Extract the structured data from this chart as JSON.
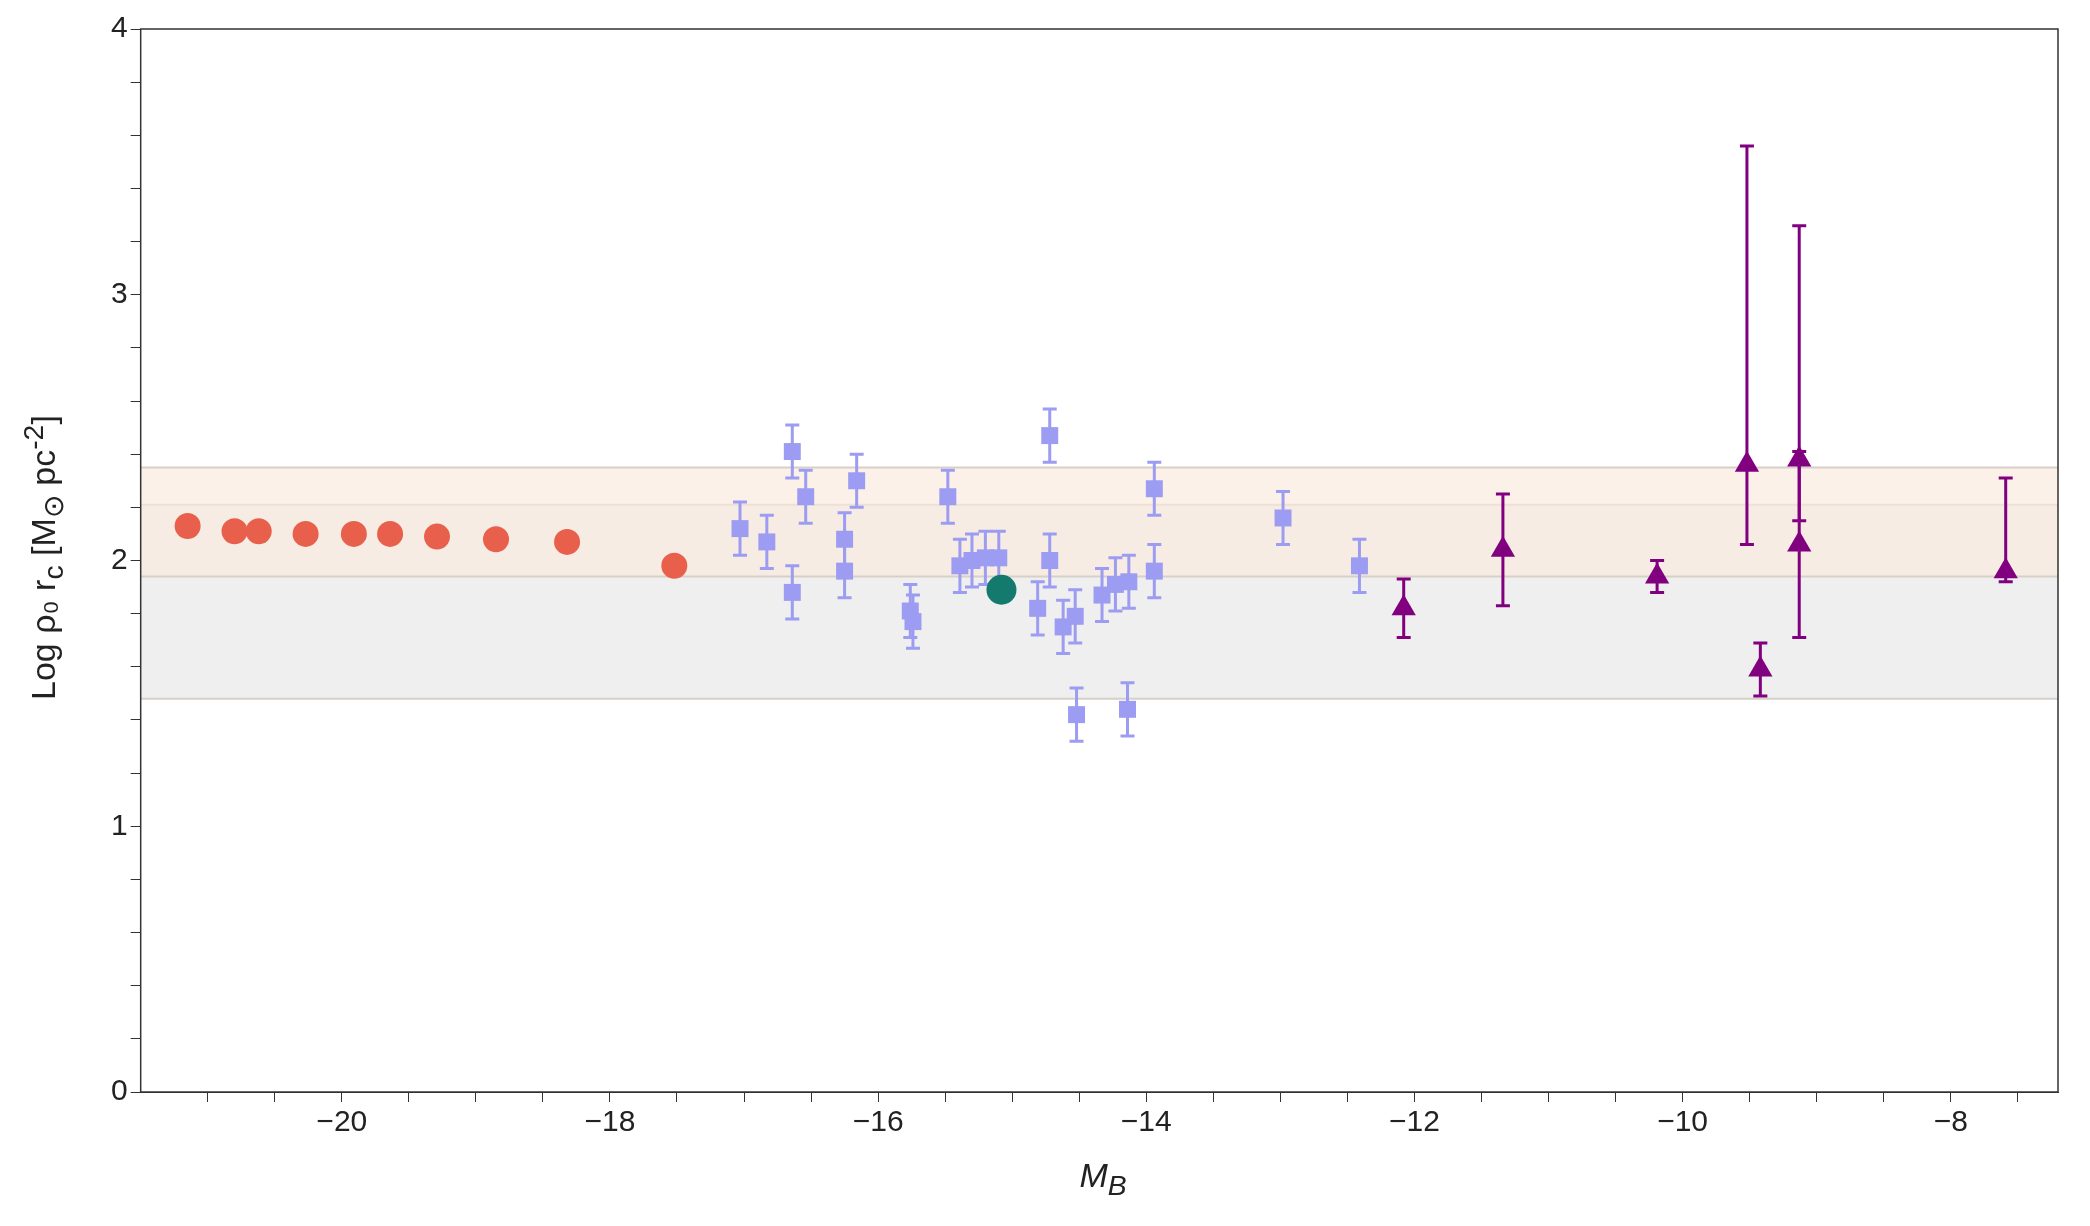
{
  "chart_data": {
    "type": "scatter",
    "xlabel": "M$_{B}$",
    "ylabel": "Log ρ₀ r$_{c}$ [M$_{⊙}$ pc$^{-2}$]",
    "xlim": [
      -21.5,
      -7.2
    ],
    "ylim": [
      0,
      4
    ],
    "xticks": [
      {
        "value": -21,
        "label": null
      },
      {
        "value": -20.5,
        "label": null
      },
      {
        "value": -20,
        "label": "−20"
      },
      {
        "value": -19.5,
        "label": null
      },
      {
        "value": -19,
        "label": null
      },
      {
        "value": -18.5,
        "label": null
      },
      {
        "value": -18,
        "label": "−18"
      },
      {
        "value": -17.5,
        "label": null
      },
      {
        "value": -17,
        "label": null
      },
      {
        "value": -16.5,
        "label": null
      },
      {
        "value": -16,
        "label": "−16"
      },
      {
        "value": -15.5,
        "label": null
      },
      {
        "value": -15,
        "label": null
      },
      {
        "value": -14.5,
        "label": null
      },
      {
        "value": -14,
        "label": "−14"
      },
      {
        "value": -13.5,
        "label": null
      },
      {
        "value": -13,
        "label": null
      },
      {
        "value": -12.5,
        "label": null
      },
      {
        "value": -12,
        "label": "−12"
      },
      {
        "value": -11.5,
        "label": null
      },
      {
        "value": -11,
        "label": null
      },
      {
        "value": -10.5,
        "label": null
      },
      {
        "value": -10,
        "label": "−10"
      },
      {
        "value": -9.5,
        "label": null
      },
      {
        "value": -9,
        "label": null
      },
      {
        "value": -8.5,
        "label": null
      },
      {
        "value": -8,
        "label": "−8"
      },
      {
        "value": -7.5,
        "label": null
      }
    ],
    "yticks": [
      0,
      {
        "value": 0.2,
        "label": null
      },
      {
        "value": 0.4,
        "label": null
      },
      {
        "value": 0.6,
        "label": null
      },
      {
        "value": 0.8,
        "label": null
      },
      1,
      {
        "value": 1.2,
        "label": null
      },
      {
        "value": 1.4,
        "label": null
      },
      {
        "value": 1.6,
        "label": null
      },
      {
        "value": 1.8,
        "label": null
      },
      2,
      {
        "value": 2.2,
        "label": null
      },
      {
        "value": 2.4,
        "label": null
      },
      {
        "value": 2.6,
        "label": null
      },
      {
        "value": 2.8,
        "label": null
      },
      3,
      {
        "value": 3.2,
        "label": null
      },
      {
        "value": 3.4,
        "label": null
      },
      {
        "value": 3.6,
        "label": null
      },
      {
        "value": 3.8,
        "label": null
      },
      4
    ],
    "bands": [
      {
        "axis": "y",
        "from": 1.48,
        "to": 2.21,
        "color": "#e6e6e6"
      },
      {
        "axis": "y",
        "from": 1.94,
        "to": 2.35,
        "color": "#fbeadb"
      }
    ],
    "series": [
      {
        "color": "#e8604c",
        "marker": "circle",
        "x": [
          -21.15,
          -20.8,
          -20.62,
          -20.27,
          -19.91,
          -19.64,
          -19.29,
          -18.85,
          -18.32,
          -17.52
        ],
        "values": [
          2.13,
          2.11,
          2.11,
          2.1,
          2.1,
          2.1,
          2.09,
          2.08,
          2.07,
          1.98
        ]
      },
      {
        "color": "#9c9cf2",
        "marker": "square",
        "x": [
          -17.03,
          -16.83,
          -16.64,
          -16.54,
          -16.64,
          -16.16,
          -16.25,
          -16.25,
          -15.76,
          -15.74,
          -15.48,
          -15.39,
          -15.3,
          -15.2,
          -15.1,
          -14.72,
          -14.72,
          -14.81,
          -14.62,
          -14.53,
          -14.52,
          -14.33,
          -14.23,
          -14.13,
          -14.14,
          -13.94,
          -13.94,
          -12.98,
          -12.41
        ],
        "values": [
          2.12,
          2.07,
          2.41,
          2.24,
          1.88,
          2.3,
          2.08,
          1.96,
          1.81,
          1.77,
          2.24,
          1.98,
          2.0,
          2.01,
          2.01,
          2.47,
          2.0,
          1.82,
          1.75,
          1.79,
          1.42,
          1.87,
          1.91,
          1.92,
          1.44,
          2.27,
          1.96,
          2.16,
          1.98
        ],
        "errors": [
          0.1,
          0.1,
          0.1,
          0.1,
          0.1,
          0.1,
          0.1,
          0.1,
          0.1,
          0.1,
          0.1,
          0.1,
          0.1,
          0.1,
          0.1,
          0.1,
          0.1,
          0.1,
          0.1,
          0.1,
          0.1,
          0.1,
          0.1,
          0.1,
          0.1,
          0.1,
          0.1,
          0.1,
          0.1
        ]
      },
      {
        "color": "#147a6e",
        "marker": "circle",
        "x": [
          -15.08
        ],
        "values": [
          1.89
        ]
      },
      {
        "color": "#800080",
        "marker": "triangle",
        "x": [
          -12.08,
          -11.34,
          -10.19,
          -9.52,
          -9.42,
          -9.13,
          -9.13,
          -7.59
        ],
        "values": [
          1.82,
          2.04,
          1.94,
          2.36,
          1.59,
          2.38,
          2.06,
          1.96
        ],
        "errors": [
          0.11,
          0.21,
          0.06,
          [
            2.06,
            3.56
          ],
          0.1,
          [
            2.15,
            3.26
          ],
          0.35,
          [
            1.92,
            2.31
          ]
        ]
      }
    ]
  }
}
